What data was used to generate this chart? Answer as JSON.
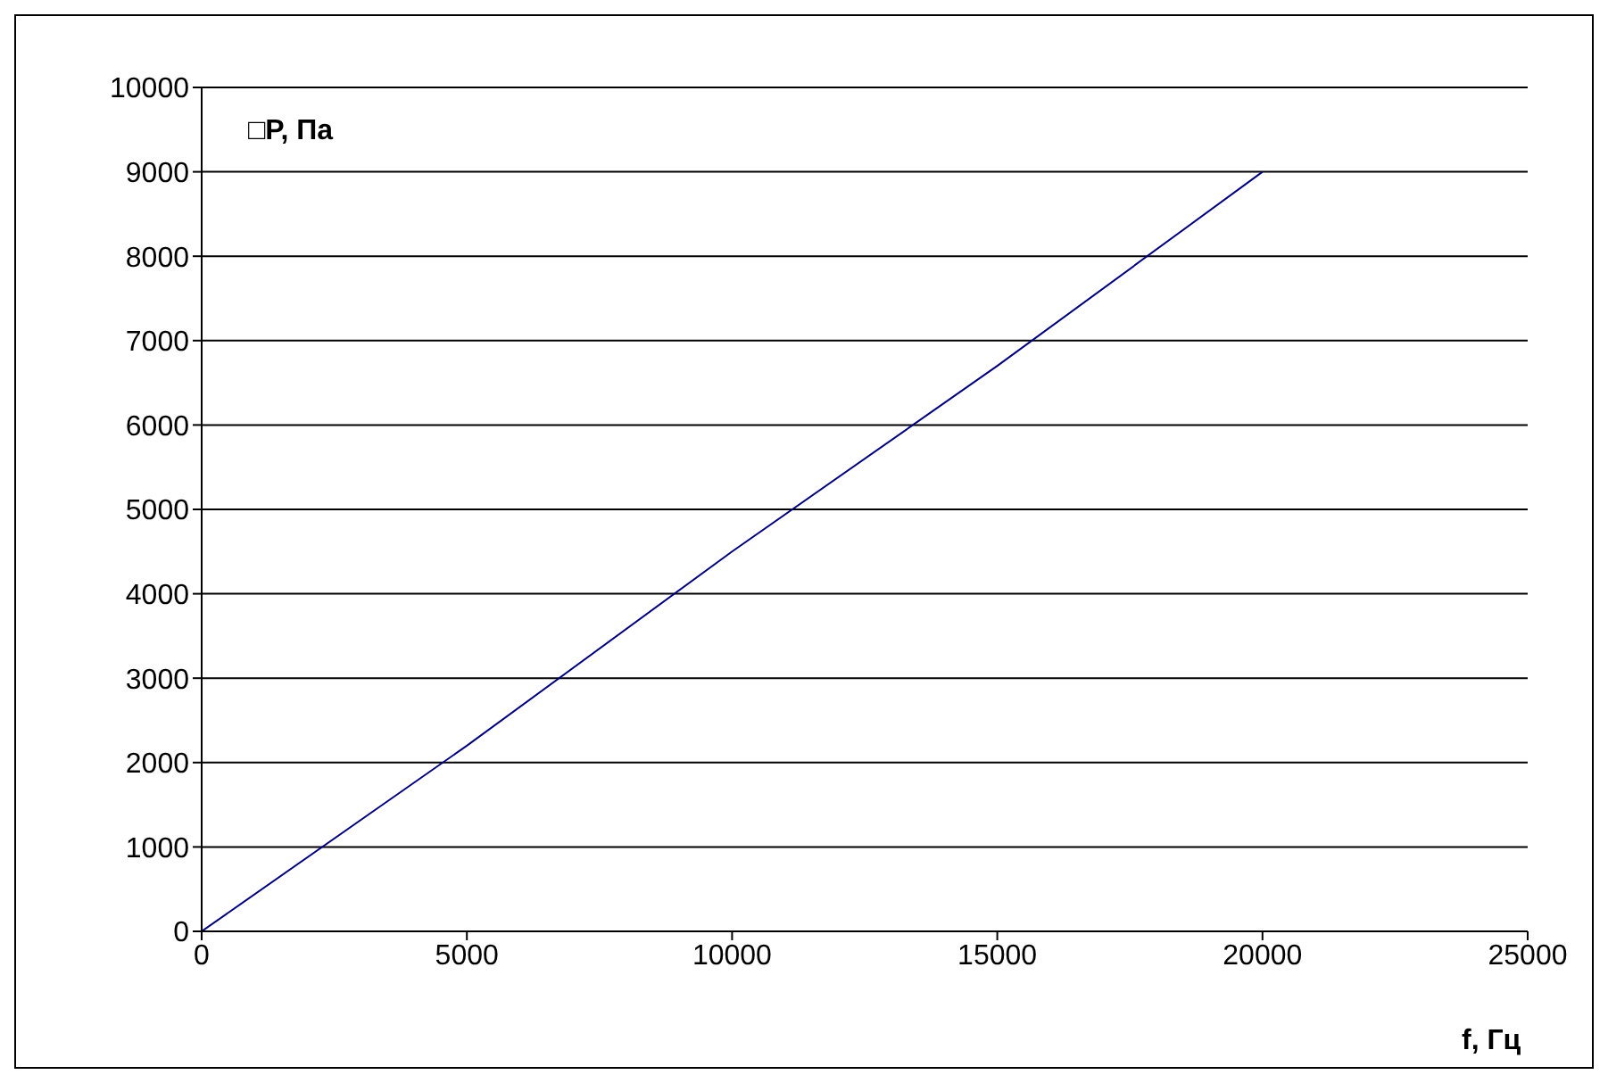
{
  "chart_data": {
    "type": "line",
    "xlabel": "f, Гц",
    "ylabel": "□P, Па",
    "x": [
      0,
      5000,
      10000,
      15000,
      20000
    ],
    "series": [
      {
        "color": "#000080",
        "values": [
          0,
          2200,
          4500,
          6700,
          9000
        ]
      }
    ],
    "xlim": [
      0,
      25000
    ],
    "xticks": [
      0,
      5000,
      10000,
      15000,
      20000,
      25000
    ],
    "ylim": [
      0,
      10000
    ],
    "yticks": [
      0,
      1000,
      2000,
      3000,
      4000,
      5000,
      6000,
      7000,
      8000,
      9000,
      10000
    ],
    "grid": "y",
    "marker": "none",
    "line_style": "solid"
  }
}
